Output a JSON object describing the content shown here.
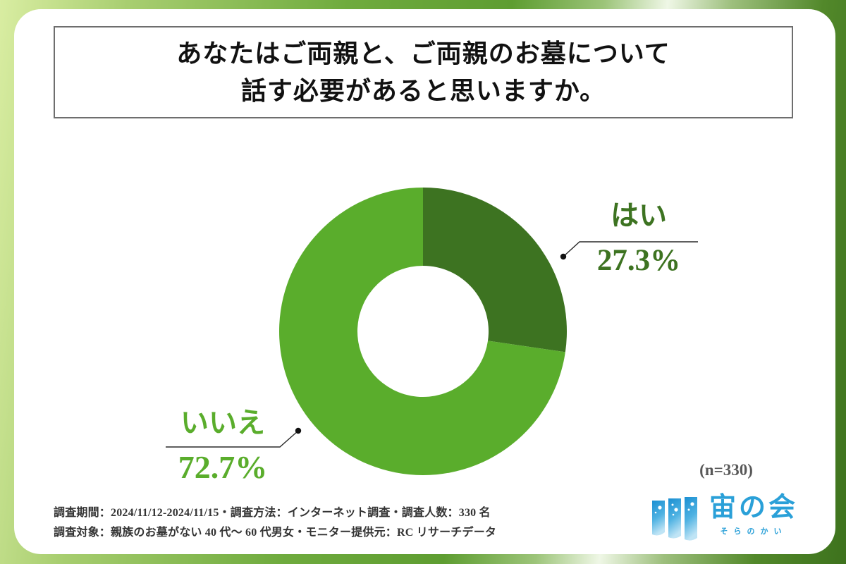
{
  "title": {
    "line1": "あなたはご両親と、ご両親のお墓について",
    "line2": "話す必要があると思いますか。"
  },
  "chart_data": {
    "type": "pie",
    "subtype": "donut",
    "categories": [
      "はい",
      "いいえ"
    ],
    "values": [
      27.3,
      72.7
    ],
    "unit": "%",
    "colors": [
      "#3d7321",
      "#5aad2c"
    ],
    "start_angle": "12-oclock",
    "direction": "clockwise",
    "inner_radius_ratio": 0.455,
    "sample_size": 330,
    "sample_label": "(n=330)"
  },
  "callouts": {
    "yes": {
      "label": "はい",
      "value": "27.3%"
    },
    "no": {
      "label": "いいえ",
      "value": "72.7%"
    }
  },
  "footnote": {
    "line1": "調査期間：2024/11/12-2024/11/15・調査方法：インターネット調査・調査人数：330 名",
    "line2": "調査対象：親族のお墓がない 40 代～ 60 代男女・モニター提供元：RC リサーチデータ"
  },
  "logo": {
    "name": "宙の会",
    "reading": "そらのかい",
    "color": "#2aa0d8"
  },
  "palette": {
    "dark_green": "#3d7321",
    "light_green": "#5aad2c",
    "leader_line": "#2a2a2a",
    "footnote_text": "#333333",
    "n_label_text": "#585858"
  }
}
